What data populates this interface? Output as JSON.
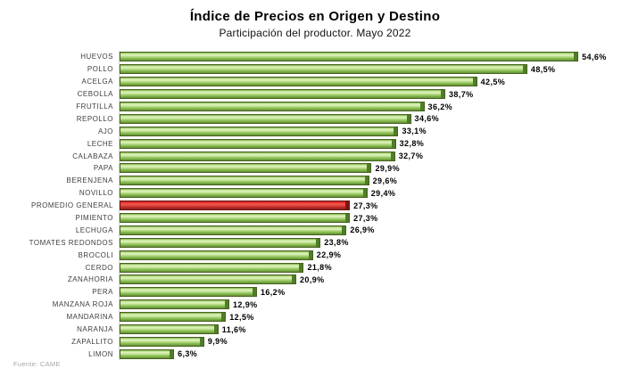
{
  "header": {
    "title": "Índice de Precios en Origen y Destino",
    "subtitle": "Participación del productor. Mayo 2022"
  },
  "footer": {
    "source": "Fuente: CAME"
  },
  "chart_data": {
    "type": "bar",
    "orientation": "horizontal",
    "title": "Índice de Precios en Origen y Destino",
    "subtitle": "Participación del productor. Mayo 2022",
    "unit": "%",
    "xlim": [
      0,
      58
    ],
    "grid": false,
    "legend": false,
    "value_label_format": "decimal-comma-percent",
    "categories": [
      "HUEVOS",
      "POLLO",
      "ACELGA",
      "CEBOLLA",
      "FRUTILLA",
      "REPOLLO",
      "AJO",
      "LECHE",
      "CALABAZA",
      "PAPA",
      "BERENJENA",
      "NOVILLO",
      "PROMEDIO GENERAL",
      "PIMIENTO",
      "LECHUGA",
      "TOMATES REDONDOS",
      "BROCOLI",
      "CERDO",
      "ZANAHORIA",
      "PERA",
      "MANZANA ROJA",
      "MANDARINA",
      "NARANJA",
      "ZAPALLITO",
      "LIMON"
    ],
    "values": [
      54.6,
      48.5,
      42.5,
      38.7,
      36.2,
      34.6,
      33.1,
      32.8,
      32.7,
      29.9,
      29.6,
      29.4,
      27.3,
      27.3,
      26.9,
      23.8,
      22.9,
      21.8,
      20.9,
      16.2,
      12.9,
      12.5,
      11.6,
      9.9,
      6.3
    ],
    "value_labels": [
      "54,6%",
      "48,5%",
      "42,5%",
      "38,7%",
      "36,2%",
      "34,6%",
      "33,1%",
      "32,8%",
      "32,7%",
      "29,9%",
      "29,6%",
      "29,4%",
      "27,3%",
      "27,3%",
      "26,9%",
      "23,8%",
      "22,9%",
      "21,8%",
      "20,9%",
      "16,2%",
      "12,9%",
      "12,5%",
      "11,6%",
      "9,9%",
      "6,3%"
    ],
    "highlight_category": "PROMEDIO GENERAL",
    "colors": {
      "bar_green": "#8CBF4D",
      "bar_green_dark_cap": "#4F7D28",
      "bar_highlight_red": "#E8362F",
      "bar_highlight_red_cap": "#7A1512",
      "axis_line": "#D9D9D9",
      "category_text": "#3F3F3F",
      "value_text": "#000000",
      "source_text": "#A6A6A6"
    }
  }
}
